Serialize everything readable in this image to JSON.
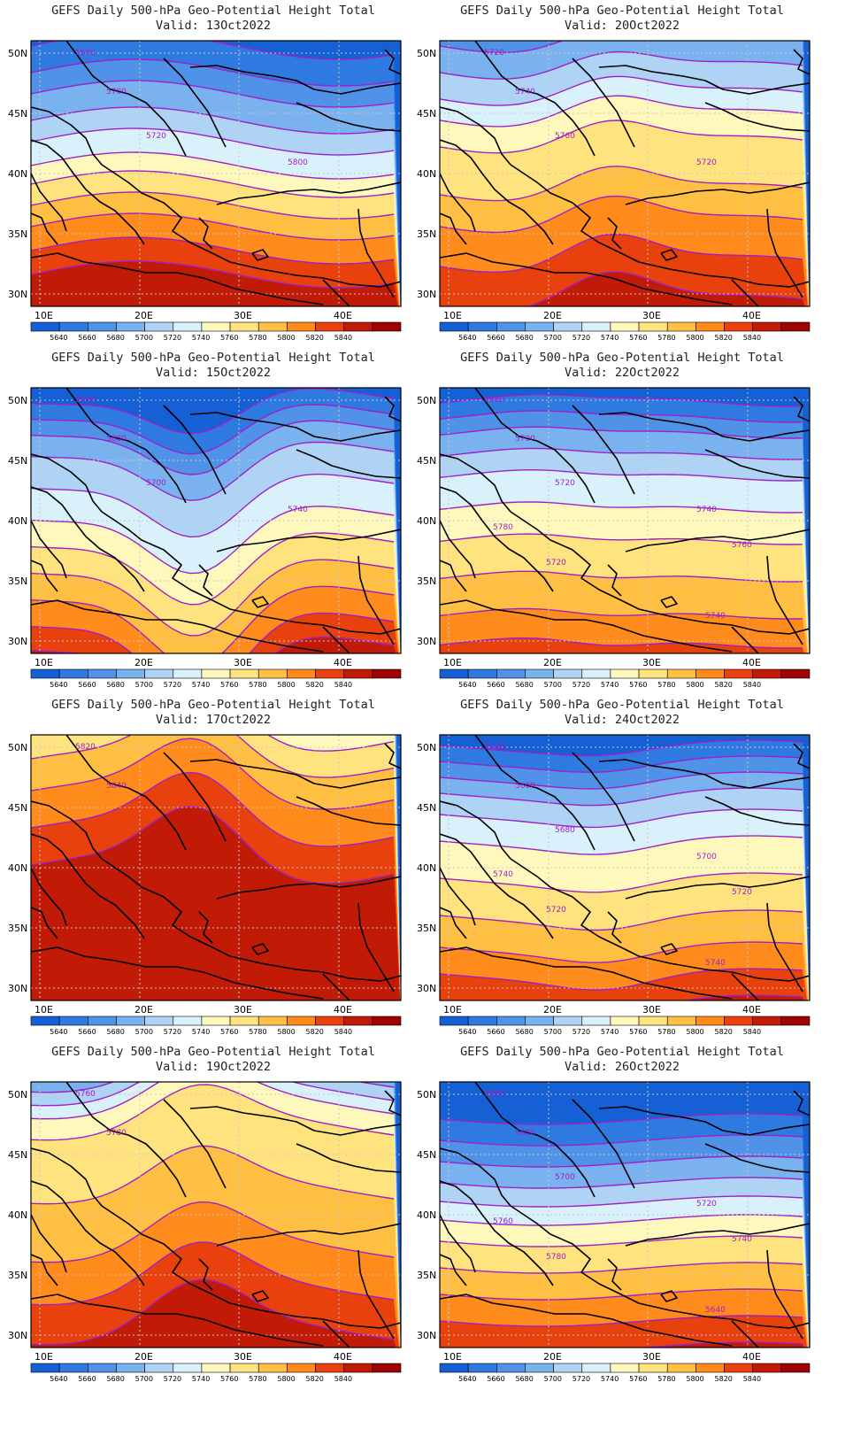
{
  "legend": {
    "levels": [
      "5640",
      "5660",
      "5680",
      "5700",
      "5720",
      "5740",
      "5760",
      "5780",
      "5800",
      "5820",
      "5840"
    ],
    "colors": [
      "#1560d4",
      "#2f7ae0",
      "#4f92e8",
      "#7ab1ef",
      "#aed3f5",
      "#d9f1fb",
      "#fff8bd",
      "#ffe37f",
      "#ffbf42",
      "#ff8b1c",
      "#e9410d",
      "#c11a06",
      "#9c0404"
    ]
  },
  "axes": {
    "lon_ticks": [
      "10E",
      "20E",
      "30E",
      "40E"
    ],
    "lat_ticks": [
      "50N",
      "45N",
      "40N",
      "35N",
      "30N"
    ]
  },
  "panels": [
    {
      "title": "GEFS Daily 500-hPa Geo-Potential Height Total",
      "valid": "Valid: 13Oct2022",
      "bands": [
        0.02,
        0.12,
        0.2,
        0.3,
        0.38,
        0.47,
        0.54,
        0.62,
        0.7,
        0.79,
        0.88
      ],
      "amp": 0.05,
      "phase": 0.5,
      "trough": 0,
      "labels": [
        "5680",
        "5700",
        "5720",
        "5800"
      ]
    },
    {
      "title": "GEFS Daily 500-hPa Geo-Potential Height Total",
      "valid": "Valid: 20Oct2022",
      "bands": [
        -0.2,
        -0.1,
        0.02,
        0.12,
        0.22,
        0.3,
        0.4,
        0.58,
        0.7,
        0.85,
        1.0
      ],
      "amp": 0.04,
      "phase": 1.0,
      "trough": -0.15,
      "labels": [
        "5720",
        "5740",
        "5760",
        "5720"
      ]
    },
    {
      "title": "GEFS Daily 500-hPa Geo-Potential Height Total",
      "valid": "Valid: 15Oct2022",
      "bands": [
        0.02,
        0.08,
        0.14,
        0.22,
        0.34,
        0.46,
        0.56,
        0.66,
        0.76,
        0.86,
        0.95
      ],
      "amp": 0.04,
      "phase": 0.2,
      "trough": 0.35,
      "labels": [
        "5660",
        "5680",
        "5700",
        "5740"
      ]
    },
    {
      "title": "GEFS Daily 500-hPa Geo-Potential Height Total",
      "valid": "Valid: 22Oct2022",
      "bands": [
        0.04,
        0.1,
        0.16,
        0.24,
        0.32,
        0.44,
        0.56,
        0.7,
        0.84,
        0.95,
        1.05
      ],
      "amp": 0.03,
      "phase": 0.4,
      "trough": 0.05,
      "labels": [
        "5680",
        "5700",
        "5720",
        "5740",
        "5760",
        "5780",
        "5720",
        "5740"
      ]
    },
    {
      "title": "GEFS Daily 500-hPa Geo-Potential Height Total",
      "valid": "Valid: 17Oct2022",
      "bands": [
        -0.8,
        -0.6,
        -0.4,
        -0.3,
        -0.2,
        -0.1,
        0.02,
        0.12,
        0.24,
        0.38,
        0.52
      ],
      "amp": 0.05,
      "phase": 1.6,
      "trough": -0.25,
      "labels": [
        "5820",
        "5840"
      ]
    },
    {
      "title": "GEFS Daily 500-hPa Geo-Potential Height Total",
      "valid": "Valid: 24Oct2022",
      "bands": [
        0.04,
        0.1,
        0.16,
        0.22,
        0.3,
        0.4,
        0.54,
        0.68,
        0.8,
        0.9,
        1.0
      ],
      "amp": 0.02,
      "phase": 0.0,
      "trough": 0.05,
      "labels": [
        "5640",
        "5660",
        "5680",
        "5700",
        "5720",
        "5740",
        "5720",
        "5740"
      ]
    },
    {
      "title": "GEFS Daily 500-hPa Geo-Potential Height Total",
      "valid": "Valid: 19Oct2022",
      "bands": [
        -0.4,
        -0.2,
        -0.1,
        0.0,
        0.05,
        0.1,
        0.18,
        0.42,
        0.64,
        0.8,
        0.95
      ],
      "amp": 0.04,
      "phase": 1.2,
      "trough": -0.18,
      "labels": [
        "5760",
        "5780"
      ]
    },
    {
      "title": "GEFS Daily 500-hPa Geo-Potential Height Total",
      "valid": "Valid: 26Oct2022",
      "bands": [
        0.14,
        0.22,
        0.3,
        0.38,
        0.45,
        0.52,
        0.6,
        0.7,
        0.8,
        0.9,
        1.0
      ],
      "amp": 0.02,
      "phase": 0.0,
      "trough": 0,
      "labels": [
        "5660",
        "5680",
        "5700",
        "5720",
        "5740",
        "5760",
        "5780",
        "5640"
      ]
    }
  ]
}
